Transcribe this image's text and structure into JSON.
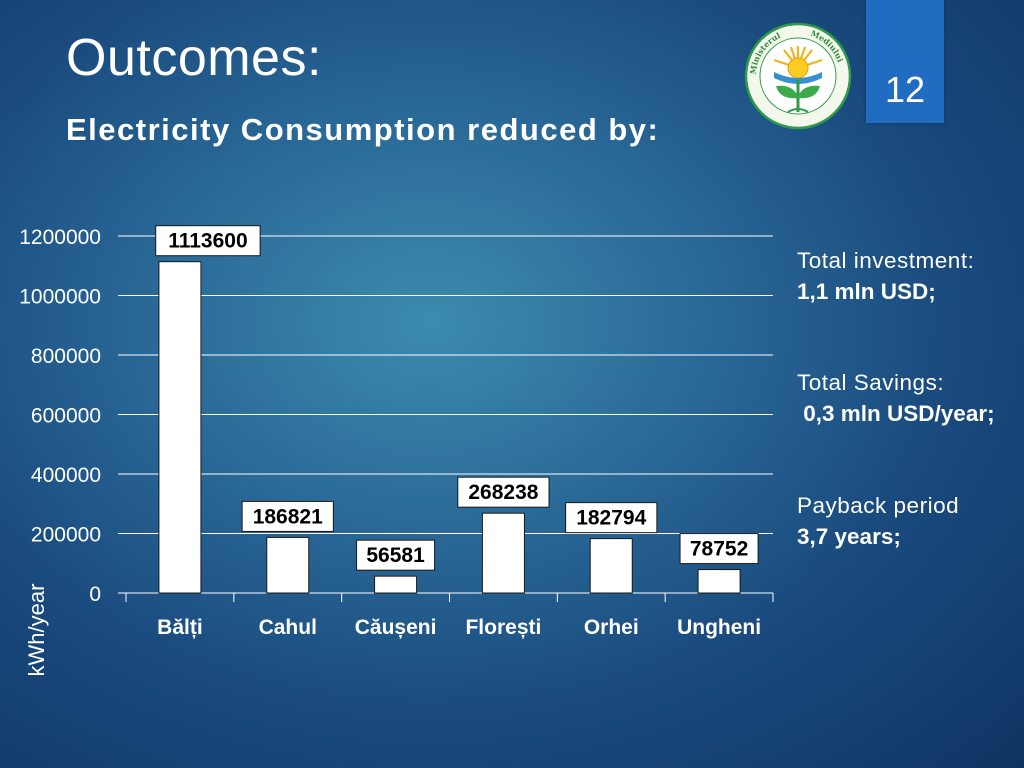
{
  "slide": {
    "title": "Outcomes:",
    "subtitle": "Electricity Consumption reduced by:",
    "page_number": "12",
    "logo_text": "Ministerul Mediului"
  },
  "colors": {
    "bar_fill": "#ffffff",
    "label_bg": "#ffffff",
    "text": "#ffffff",
    "page_box": "#1f6cc0"
  },
  "chart_data": {
    "type": "bar",
    "categories": [
      "Bălți",
      "Cahul",
      "Căușeni",
      "Florești",
      "Orhei",
      "Ungheni"
    ],
    "values": [
      1113600,
      186821,
      56581,
      268238,
      182794,
      78752
    ],
    "data_labels": [
      "1113600",
      "186821",
      "56581",
      "268238",
      "182794",
      "78752"
    ],
    "yticks": [
      0,
      200000,
      400000,
      600000,
      800000,
      1000000,
      1200000
    ],
    "ylim": [
      0,
      1200000
    ],
    "ylabel": "kWh/year",
    "xlabel": "",
    "grid": true,
    "title": ""
  },
  "stats": [
    {
      "label": "Total investment:",
      "value": "1,1 mln USD;"
    },
    {
      "label": "Total Savings:",
      "value": " 0,3 mln USD/year;"
    },
    {
      "label": "Payback period",
      "value": "3,7 years;"
    }
  ]
}
